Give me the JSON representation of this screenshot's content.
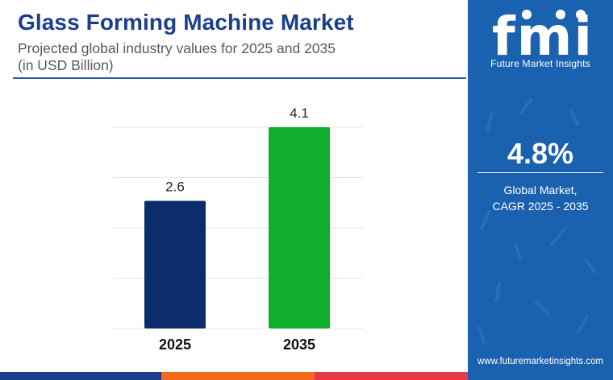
{
  "header": {
    "title": "Glass Forming Machine Market",
    "subtitle_line1": "Projected global industry values for 2025 and 2035",
    "subtitle_line2": "(in USD Billion)"
  },
  "sidebar": {
    "logo_text": "fmi",
    "brand_name": "Future Market Insights",
    "cagr_value": "4.8%",
    "cagr_label_line1": "Global Market,",
    "cagr_label_line2": "CAGR 2025 - 2035",
    "website": "www.futuremarketinsights.com"
  },
  "colors": {
    "title": "#1b3f8c",
    "panel": "#1a62b0",
    "bar_2025": "#0b2d6b",
    "bar_2035": "#0fae2e",
    "strip": [
      "#1b3f8c",
      "#6abf3a",
      "#f26b1d",
      "#e63946"
    ]
  },
  "chart_data": {
    "type": "bar",
    "title": "Glass Forming Machine Market",
    "xlabel": "",
    "ylabel": "USD Billion",
    "categories": [
      "2025",
      "2035"
    ],
    "values": [
      2.6,
      4.1
    ],
    "data_labels": [
      "2.6",
      "4.1"
    ],
    "ylim": [
      0,
      4.1
    ],
    "grid": true
  }
}
